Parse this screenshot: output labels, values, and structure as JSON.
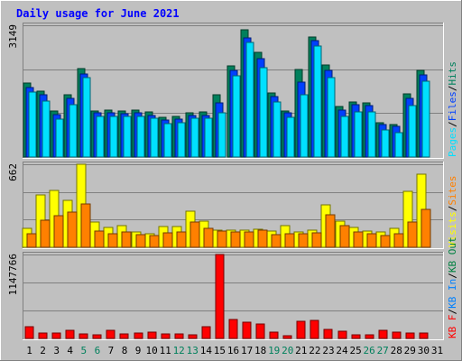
{
  "chart_data": {
    "type": "bar",
    "title": "Daily usage for June 2021",
    "colors": {
      "background": "#c0c0c0",
      "frame_light": "#ffffff",
      "frame_dark": "#808080",
      "title": "#0000ff",
      "day_label": "#000000",
      "weekend_label": "#00805c",
      "hits": "#00805c",
      "files": "#0040ff",
      "pages": "#00e0ff",
      "visits": "#ffff00",
      "sites": "#ff8000",
      "kbytes": "#ff0000",
      "kb_out": "#008040",
      "kb_in": "#0080ff",
      "sep": "#000000"
    },
    "days": [
      "1",
      "2",
      "3",
      "4",
      "5",
      "6",
      "7",
      "8",
      "9",
      "10",
      "11",
      "12",
      "13",
      "14",
      "15",
      "16",
      "17",
      "18",
      "19",
      "20",
      "21",
      "22",
      "23",
      "24",
      "25",
      "26",
      "27",
      "28",
      "29",
      "30",
      "31"
    ],
    "weekend_days": [
      "5",
      "6",
      "12",
      "13",
      "19",
      "20",
      "26",
      "27"
    ],
    "panels": [
      {
        "id": "hits",
        "ymax_label": "3149",
        "ymax": 3149,
        "legend": [
          {
            "label": "Pages",
            "color": "#00e0ff"
          },
          {
            "label": "/",
            "color": "#000000"
          },
          {
            "label": "Files",
            "color": "#0040ff"
          },
          {
            "label": "/",
            "color": "#000000"
          },
          {
            "label": "Hits",
            "color": "#00805c"
          }
        ],
        "series": [
          {
            "name": "Hits",
            "color": "#00805c",
            "values": [
              1760,
              1580,
              1090,
              1480,
              2110,
              1110,
              1120,
              1090,
              1130,
              1070,
              940,
              960,
              1060,
              1080,
              1490,
              2180,
              3040,
              2500,
              1540,
              1110,
              2100,
              2860,
              2190,
              1200,
              1320,
              1300,
              830,
              770,
              1500,
              2070,
              0
            ]
          },
          {
            "name": "Files",
            "color": "#0040ff",
            "values": [
              1650,
              1490,
              1020,
              1400,
              1990,
              1050,
              1060,
              1030,
              1060,
              1000,
              890,
              910,
              1000,
              1000,
              1290,
              2060,
              2840,
              2360,
              1440,
              1060,
              1780,
              2790,
              2080,
              1130,
              1260,
              1230,
              780,
              730,
              1400,
              1960,
              0
            ]
          },
          {
            "name": "Pages",
            "color": "#00e0ff",
            "values": [
              1550,
              1340,
              900,
              1250,
              1900,
              960,
              960,
              960,
              960,
              920,
              790,
              810,
              920,
              930,
              1050,
              1950,
              2740,
              2130,
              1320,
              940,
              1480,
              2650,
              1890,
              960,
              1080,
              1080,
              650,
              590,
              1240,
              1810,
              0
            ]
          }
        ]
      },
      {
        "id": "visits",
        "ymax_label": "662",
        "ymax": 662,
        "legend": [
          {
            "label": "Visits",
            "color": "#ffff00"
          },
          {
            "label": "/",
            "color": "#000000"
          },
          {
            "label": "Sites",
            "color": "#ff8000"
          }
        ],
        "series": [
          {
            "name": "Visits",
            "color": "#ffff00",
            "values": [
              150,
              420,
              450,
              375,
              662,
              205,
              160,
              170,
              120,
              110,
              165,
              165,
              290,
              210,
              140,
              135,
              135,
              145,
              130,
              170,
              120,
              135,
              340,
              210,
              160,
              130,
              125,
              150,
              445,
              580,
              0
            ]
          },
          {
            "name": "Sites",
            "color": "#ff8000",
            "values": [
              105,
              215,
              255,
              280,
              345,
              130,
              110,
              120,
              100,
              95,
              115,
              120,
              200,
              150,
              130,
              120,
              120,
              135,
              100,
              105,
              110,
              115,
              260,
              175,
              125,
              110,
              90,
              105,
              205,
              305,
              0
            ]
          }
        ]
      },
      {
        "id": "kbytes",
        "ymax_label": "1147766",
        "ymax": 1147766,
        "legend": [
          {
            "label": "KB F",
            "color": "#ff0000"
          },
          {
            "label": "/",
            "color": "#000000"
          },
          {
            "label": "KB In",
            "color": "#0080ff"
          },
          {
            "label": "/",
            "color": "#000000"
          },
          {
            "label": "KB Out",
            "color": "#008040"
          }
        ],
        "series": [
          {
            "name": "KB F",
            "color": "#ff0000",
            "values": [
              165000,
              75000,
              80000,
              105000,
              60000,
              55000,
              105000,
              60000,
              70000,
              90000,
              60000,
              60000,
              50000,
              165000,
              1147766,
              255000,
              225000,
              195000,
              85000,
              40000,
              240000,
              245000,
              125000,
              95000,
              55000,
              55000,
              105000,
              90000,
              80000,
              75000,
              0
            ]
          }
        ]
      }
    ]
  }
}
